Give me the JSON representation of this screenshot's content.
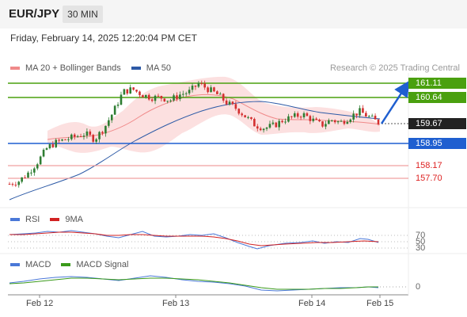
{
  "header": {
    "symbol": "EUR/JPY",
    "timeframe": "30 MIN",
    "datetime": "Friday, February 14, 2025 12:20:04 PM CET"
  },
  "legend_main": [
    {
      "label": "MA 20 + Bollinger Bands",
      "color": "#f08a8a"
    },
    {
      "label": "MA 50",
      "color": "#2d5aa6"
    }
  ],
  "credit": "Research © 2025 Trading Central",
  "levels": {
    "r2": "161.11",
    "r1": "160.64",
    "last": "159.67",
    "pivot": "158.95",
    "s1": "158.17",
    "s2": "157.70"
  },
  "legend_rsi": [
    {
      "label": "RSI",
      "color": "#4a78d8"
    },
    {
      "label": "9MA",
      "color": "#d22222"
    }
  ],
  "rsi_levels": [
    "70",
    "50",
    "30"
  ],
  "legend_macd": [
    {
      "label": "MACD",
      "color": "#4a78d8"
    },
    {
      "label": "MACD Signal",
      "color": "#3a9a1a"
    }
  ],
  "macd_zero": "0",
  "x_ticks": [
    "Feb 12",
    "Feb 13",
    "Feb 14",
    "Feb 15"
  ],
  "colors": {
    "green_level": "#4aa00f",
    "blue_level": "#1f5fd0",
    "red_level": "#e05050",
    "candle_up": "#2e7d32",
    "candle_down": "#d32f2f",
    "bands_fill": "#fbd6d6",
    "ma50": "#2d5aa6"
  },
  "chart_data": {
    "type": "line",
    "series": [
      {
        "name": "MA 50"
      },
      {
        "name": "MA 20 + Bollinger Bands"
      }
    ],
    "x": [
      "Feb 12",
      "Feb 13",
      "Feb 14",
      "Feb 15"
    ],
    "close_path": [
      157.5,
      157.6,
      157.9,
      158.3,
      158.8,
      159.0,
      159.1,
      159.2,
      159.3,
      159.1,
      159.5,
      160.1,
      160.8,
      160.9,
      160.7,
      160.6,
      160.6,
      160.5,
      160.7,
      160.8,
      161.1,
      160.9,
      160.7,
      160.4,
      160.2,
      159.9,
      159.6,
      159.5,
      159.6,
      159.8,
      159.9,
      160.0,
      159.8,
      159.6,
      159.8,
      159.7,
      159.9,
      160.1,
      159.9,
      159.7
    ],
    "pivot_levels": [
      161.11,
      160.64,
      158.95,
      158.17,
      157.7
    ],
    "last_price": 159.67,
    "projection": "up toward 161.11"
  }
}
